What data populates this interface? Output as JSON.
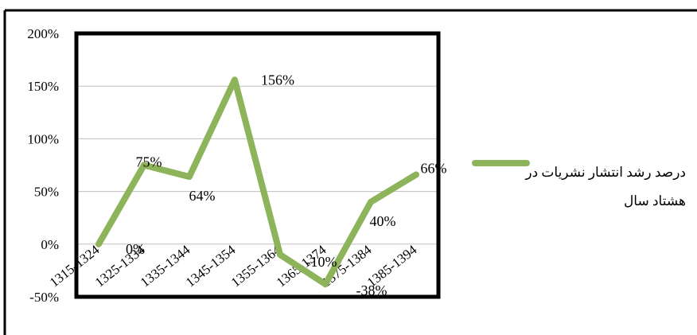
{
  "chart_data": {
    "type": "line",
    "title": "",
    "xlabel": "",
    "ylabel": "",
    "categories": [
      "1315-1324",
      "1325-1334",
      "1335-1344",
      "1345-1354",
      "1355-1364",
      "1365-1374",
      "1375-1384",
      "1385-1394"
    ],
    "series": [
      {
        "name": "درصد رشد انتشار نشریات در هشتاد سال",
        "values": [
          0,
          75,
          64,
          156,
          -10,
          -38,
          40,
          66
        ],
        "data_labels": [
          "0%",
          "75%",
          "64%",
          "156%",
          "-10%",
          "-38%",
          "40%",
          "66%"
        ]
      }
    ],
    "ylim": [
      -50,
      200
    ],
    "yticks": [
      -50,
      0,
      50,
      100,
      150,
      200
    ],
    "ytick_labels": [
      "-50%",
      "0%",
      "50%",
      "100%",
      "150%",
      "200%"
    ],
    "grid": "horizontal",
    "legend_position": "right",
    "legend_lines": [
      "درصد رشد انتشار نشریات در",
      "هشتاد سال"
    ],
    "colors": {
      "line": "#8db45a",
      "grid": "#bfbfbf",
      "frame": "#000000",
      "plot_border": "#000000"
    }
  }
}
